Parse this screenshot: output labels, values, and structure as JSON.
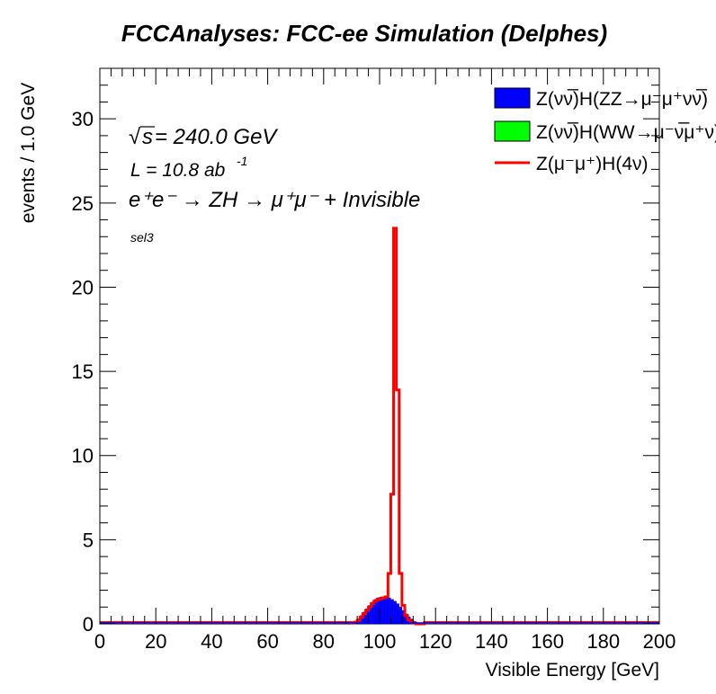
{
  "chart_data": {
    "type": "histogram",
    "title": "FCCAnalyses: FCC-ee Simulation (Delphes)",
    "xlabel": "Visible Energy [GeV]",
    "ylabel": "events / 1.0 GeV",
    "xlim": [
      0,
      200
    ],
    "ylim": [
      0,
      33
    ],
    "bin_width": 1.0,
    "x_ticks": [
      "0",
      "20",
      "40",
      "60",
      "80",
      "100",
      "120",
      "140",
      "160",
      "180",
      "200"
    ],
    "y_ticks": [
      "0",
      "5",
      "10",
      "15",
      "20",
      "25",
      "30"
    ],
    "annotations": {
      "sqrt_s_symbol": "s",
      "energy": " = 240.0 GeV",
      "lumi": "L = 10.8 ab",
      "lumi_sup": "-1",
      "process": "e⁺e⁻ → ZH → μ⁺μ⁻ + Invisible",
      "selection": "sel3"
    },
    "series": [
      {
        "name": "Z(νν̅)H(ZZ→μ⁻μ⁺νν̅)",
        "style": "filled",
        "color": "#0000ff",
        "bin_edges_start": 90,
        "values": [
          0.05,
          0.15,
          0.3,
          0.5,
          0.7,
          0.9,
          1.1,
          1.3,
          1.45,
          1.55,
          1.6,
          1.62,
          1.6,
          1.55,
          1.45,
          1.35,
          1.2,
          1.0,
          0.8,
          0.6,
          0.42,
          0.28,
          0.15,
          0.08,
          0.04,
          0.02
        ]
      },
      {
        "name": "Z(νν̅)H(WW→μ⁻ν̅μ⁺ν)",
        "style": "filled",
        "color": "#00ff00",
        "bin_edges_start": 90,
        "values": [
          0.0,
          0.0,
          0.0,
          0.0,
          0.0,
          0.0,
          0.0,
          0.0,
          0.0,
          0.0,
          0.0,
          0.0,
          0.0,
          0.0,
          0.0,
          0.0,
          0.0,
          0.0,
          0.0,
          0.0,
          0.0,
          0.0,
          0.0,
          0.0,
          0.0,
          0.0
        ]
      },
      {
        "name": "Z(μ⁻μ⁺)H(4ν)",
        "style": "line",
        "color": "#ff0000",
        "bin_edges_start": 90,
        "values": [
          0.05,
          0.1,
          0.2,
          0.4,
          0.6,
          0.8,
          1.0,
          1.2,
          1.35,
          1.45,
          1.5,
          1.55,
          1.6,
          3.0,
          7.7,
          23.5,
          13.9,
          3.0,
          1.1,
          0.5,
          0.25,
          0.1,
          0.05,
          0.0,
          0.0,
          0.0
        ]
      }
    ]
  }
}
